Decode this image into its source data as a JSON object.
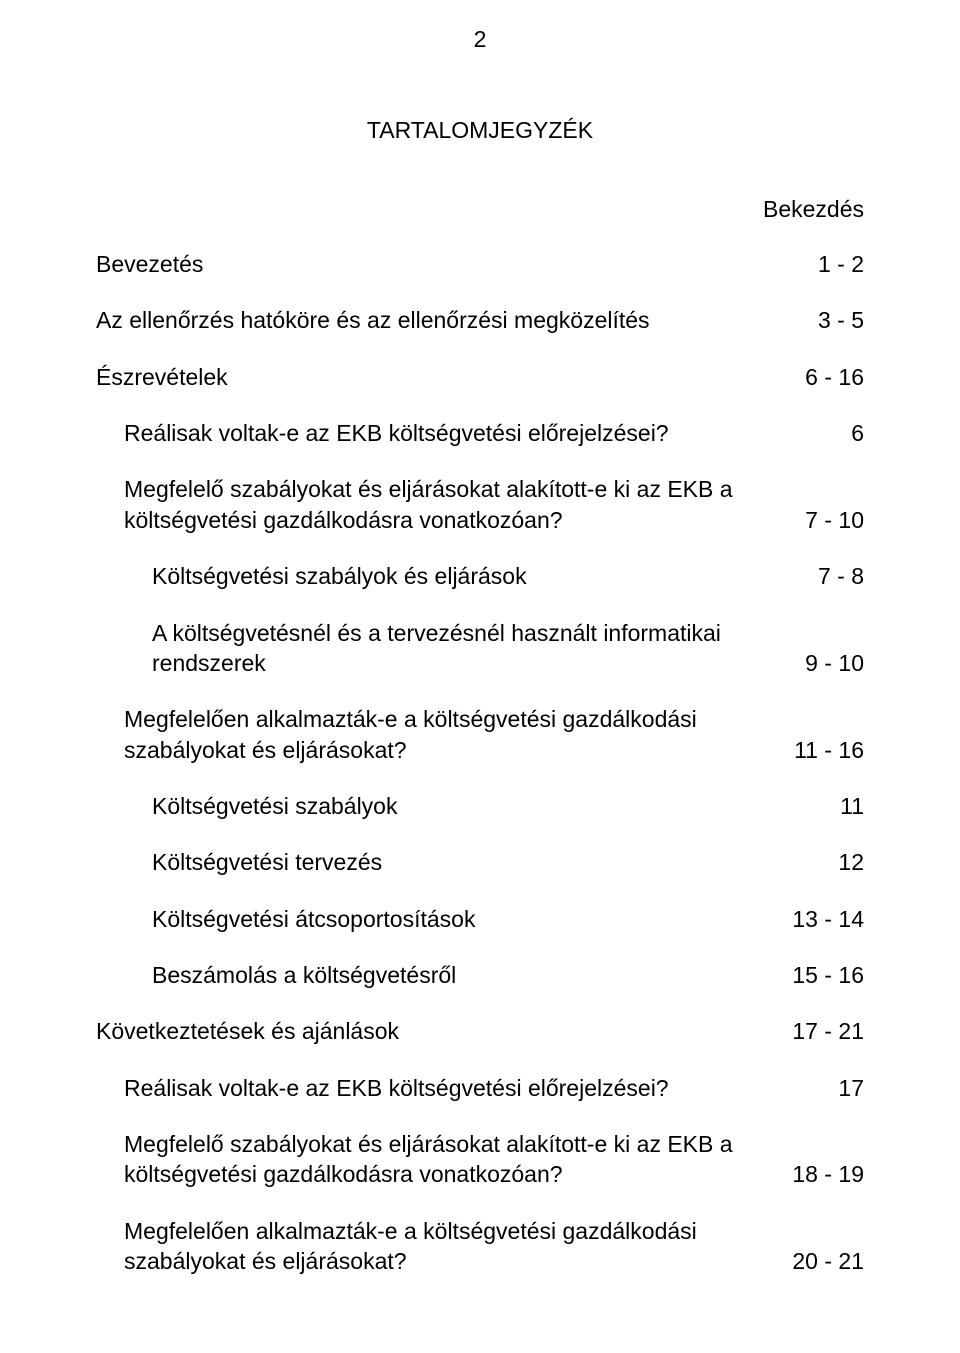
{
  "page_number": "2",
  "heading": "TARTALOMJEGYZÉK",
  "column_header": "Bekezdés",
  "entries": [
    {
      "label": "Bevezetés",
      "value": "1 - 2",
      "indent": 0
    },
    {
      "label": "Az ellenőrzés hatóköre és az ellenőrzési megközelítés",
      "value": "3 - 5",
      "indent": 0
    },
    {
      "label": "Észrevételek",
      "value": "6 - 16",
      "indent": 0
    },
    {
      "label": "Reálisak voltak-e az EKB költségvetési előrejelzései?",
      "value": "6",
      "indent": 1
    },
    {
      "label": "Megfelelő szabályokat és eljárásokat alakított-e ki az EKB a költségvetési gazdálkodásra vonatkozóan?",
      "value": "7 - 10",
      "indent": 1
    },
    {
      "label": "Költségvetési szabályok és eljárások",
      "value": "7 - 8",
      "indent": 2
    },
    {
      "label": "A költségvetésnél és a tervezésnél használt informatikai rendszerek",
      "value": "9 - 10",
      "indent": 2
    },
    {
      "label": "Megfelelően alkalmazták-e a költségvetési gazdálkodási szabályokat és eljárásokat?",
      "value": "11 - 16",
      "indent": 1
    },
    {
      "label": "Költségvetési szabályok",
      "value": "11",
      "indent": 2
    },
    {
      "label": "Költségvetési tervezés",
      "value": "12",
      "indent": 2
    },
    {
      "label": "Költségvetési átcsoportosítások",
      "value": "13 - 14",
      "indent": 2
    },
    {
      "label": "Beszámolás a költségvetésről",
      "value": "15 - 16",
      "indent": 2
    },
    {
      "label": "Következtetések és ajánlások",
      "value": "17 - 21",
      "indent": 0
    },
    {
      "label": "Reálisak voltak-e az EKB költségvetési előrejelzései?",
      "value": "17",
      "indent": 1
    },
    {
      "label": "Megfelelő szabályokat és eljárásokat alakított-e ki az EKB a költségvetési gazdálkodásra vonatkozóan?",
      "value": "18 - 19",
      "indent": 1
    },
    {
      "label": "Megfelelően alkalmazták-e a költségvetési gazdálkodási szabályokat és eljárásokat?",
      "value": "20 - 21",
      "indent": 1
    }
  ]
}
